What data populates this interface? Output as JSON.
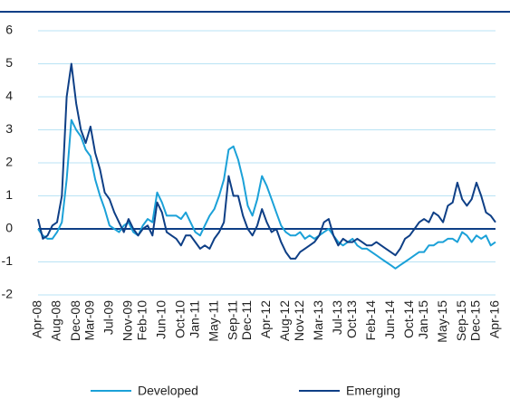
{
  "chart_data": {
    "type": "line",
    "x": [
      "Apr-08",
      "May-08",
      "Jun-08",
      "Jul-08",
      "Aug-08",
      "Sep-08",
      "Oct-08",
      "Nov-08",
      "Dec-08",
      "Jan-09",
      "Feb-09",
      "Mar-09",
      "Apr-09",
      "May-09",
      "Jun-09",
      "Jul-09",
      "Aug-09",
      "Sep-09",
      "Oct-09",
      "Nov-09",
      "Dec-09",
      "Jan-10",
      "Feb-10",
      "Mar-10",
      "Apr-10",
      "May-10",
      "Jun-10",
      "Jul-10",
      "Aug-10",
      "Sep-10",
      "Oct-10",
      "Nov-10",
      "Dec-10",
      "Jan-11",
      "Feb-11",
      "Mar-11",
      "Apr-11",
      "May-11",
      "Jun-11",
      "Jul-11",
      "Aug-11",
      "Sep-11",
      "Oct-11",
      "Nov-11",
      "Dec-11",
      "Jan-12",
      "Feb-12",
      "Mar-12",
      "Apr-12",
      "May-12",
      "Jun-12",
      "Jul-12",
      "Aug-12",
      "Sep-12",
      "Oct-12",
      "Nov-12",
      "Dec-12",
      "Jan-13",
      "Feb-13",
      "Mar-13",
      "Apr-13",
      "May-13",
      "Jun-13",
      "Jul-13",
      "Aug-13",
      "Sep-13",
      "Oct-13",
      "Nov-13",
      "Dec-13",
      "Jan-14",
      "Feb-14",
      "Mar-14",
      "Apr-14",
      "May-14",
      "Jun-14",
      "Jul-14",
      "Aug-14",
      "Sep-14",
      "Oct-14",
      "Nov-14",
      "Dec-14",
      "Jan-15",
      "Feb-15",
      "Mar-15",
      "Apr-15",
      "May-15",
      "Jun-15",
      "Jul-15",
      "Aug-15",
      "Sep-15",
      "Oct-15",
      "Nov-15",
      "Dec-15",
      "Jan-16",
      "Feb-16",
      "Mar-16",
      "Apr-16"
    ],
    "xticks": [
      "Apr-08",
      "Aug-08",
      "Dec-08",
      "Mar-09",
      "Jul-09",
      "Nov-09",
      "Feb-10",
      "Jun-10",
      "Oct-10",
      "Jan-11",
      "May-11",
      "Sep-11",
      "Dec-11",
      "Apr-12",
      "Aug-12",
      "Nov-12",
      "Mar-13",
      "Jul-13",
      "Oct-13",
      "Feb-14",
      "Jun-14",
      "Oct-14",
      "Jan-15",
      "May-15",
      "Sep-15",
      "Dec-15",
      "Apr-16"
    ],
    "series": [
      {
        "name": "Developed",
        "color": "#1ba1d8",
        "values": [
          0,
          -0.2,
          -0.3,
          -0.3,
          -0.1,
          0.2,
          1.5,
          3.3,
          3.0,
          2.8,
          2.4,
          2.2,
          1.5,
          1.0,
          0.6,
          0.1,
          0,
          -0.1,
          0.1,
          0.2,
          -0.1,
          -0.2,
          0.1,
          0.3,
          0.2,
          1.1,
          0.8,
          0.4,
          0.4,
          0.4,
          0.3,
          0.5,
          0.2,
          -0.1,
          -0.2,
          0.1,
          0.4,
          0.6,
          1.0,
          1.5,
          2.4,
          2.5,
          2.1,
          1.5,
          0.7,
          0.4,
          0.9,
          1.6,
          1.3,
          0.9,
          0.5,
          0.1,
          -0.1,
          -0.2,
          -0.2,
          -0.1,
          -0.3,
          -0.2,
          -0.3,
          -0.2,
          -0.1,
          0.0,
          -0.2,
          -0.4,
          -0.5,
          -0.4,
          -0.3,
          -0.5,
          -0.6,
          -0.6,
          -0.7,
          -0.8,
          -0.9,
          -1.0,
          -1.1,
          -1.2,
          -1.1,
          -1.0,
          -0.9,
          -0.8,
          -0.7,
          -0.7,
          -0.5,
          -0.5,
          -0.4,
          -0.4,
          -0.3,
          -0.3,
          -0.4,
          -0.1,
          -0.2,
          -0.4,
          -0.2,
          -0.3,
          -0.2,
          -0.5,
          -0.4
        ]
      },
      {
        "name": "Emerging",
        "color": "#0e3f86",
        "values": [
          0.3,
          -0.3,
          -0.2,
          0.1,
          0.2,
          1.0,
          4.0,
          5.0,
          3.8,
          3.0,
          2.6,
          3.1,
          2.3,
          1.8,
          1.1,
          0.9,
          0.5,
          0.2,
          -0.1,
          0.3,
          0.0,
          -0.2,
          0.0,
          0.1,
          -0.2,
          0.8,
          0.5,
          -0.1,
          -0.2,
          -0.3,
          -0.5,
          -0.2,
          -0.2,
          -0.4,
          -0.6,
          -0.5,
          -0.6,
          -0.3,
          -0.1,
          0.2,
          1.6,
          1.0,
          1.0,
          0.4,
          0.0,
          -0.2,
          0.1,
          0.6,
          0.2,
          -0.1,
          0.0,
          -0.4,
          -0.7,
          -0.9,
          -0.9,
          -0.7,
          -0.6,
          -0.5,
          -0.4,
          -0.2,
          0.2,
          0.3,
          -0.2,
          -0.5,
          -0.3,
          -0.4,
          -0.4,
          -0.3,
          -0.4,
          -0.5,
          -0.5,
          -0.4,
          -0.5,
          -0.6,
          -0.7,
          -0.8,
          -0.6,
          -0.3,
          -0.2,
          0.0,
          0.2,
          0.3,
          0.2,
          0.5,
          0.4,
          0.2,
          0.7,
          0.8,
          1.4,
          0.9,
          0.7,
          0.9,
          1.4,
          1.0,
          0.5,
          0.4,
          0.2
        ]
      }
    ],
    "ylim": [
      -2,
      6
    ],
    "yticks": [
      -2,
      -1,
      0,
      1,
      2,
      3,
      4,
      5,
      6
    ],
    "grid": true
  }
}
